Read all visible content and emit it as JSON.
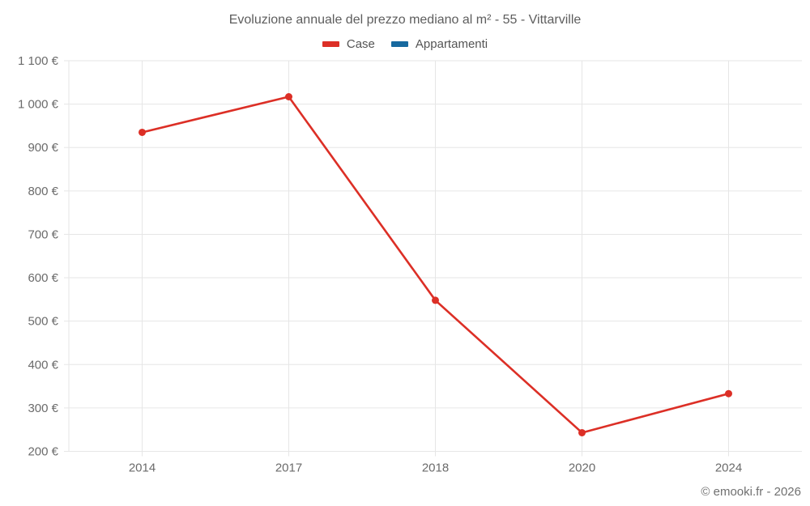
{
  "title": "Evoluzione annuale del prezzo mediano al m² - 55 - Vittarville",
  "legend": {
    "items": [
      {
        "label": "Case",
        "color": "#dc2f26"
      },
      {
        "label": "Appartamenti",
        "color": "#17699f"
      }
    ]
  },
  "footer": {
    "credit": "© emooki.fr - 2026"
  },
  "colors": {
    "grid": "#e6e6e6",
    "tick_label": "#6b6b6b"
  },
  "chart_data": {
    "type": "line",
    "title": "Evoluzione annuale del prezzo mediano al m² - 55 - Vittarville",
    "categories": [
      "2014",
      "2017",
      "2018",
      "2020",
      "2024"
    ],
    "series": [
      {
        "name": "Case",
        "color": "#dc2f26",
        "values": [
          935,
          1017,
          548,
          243,
          333
        ]
      },
      {
        "name": "Appartamenti",
        "color": "#17699f",
        "values": []
      }
    ],
    "xlabel": "",
    "ylabel": "",
    "ylim": [
      200,
      1100
    ],
    "ytick_step": 100,
    "ytick_labels": [
      "200 €",
      "300 €",
      "400 €",
      "500 €",
      "600 €",
      "700 €",
      "800 €",
      "900 €",
      "1 000 €",
      "1 100 €"
    ],
    "grid": true,
    "legend_position": "top",
    "point_style": "circle"
  }
}
